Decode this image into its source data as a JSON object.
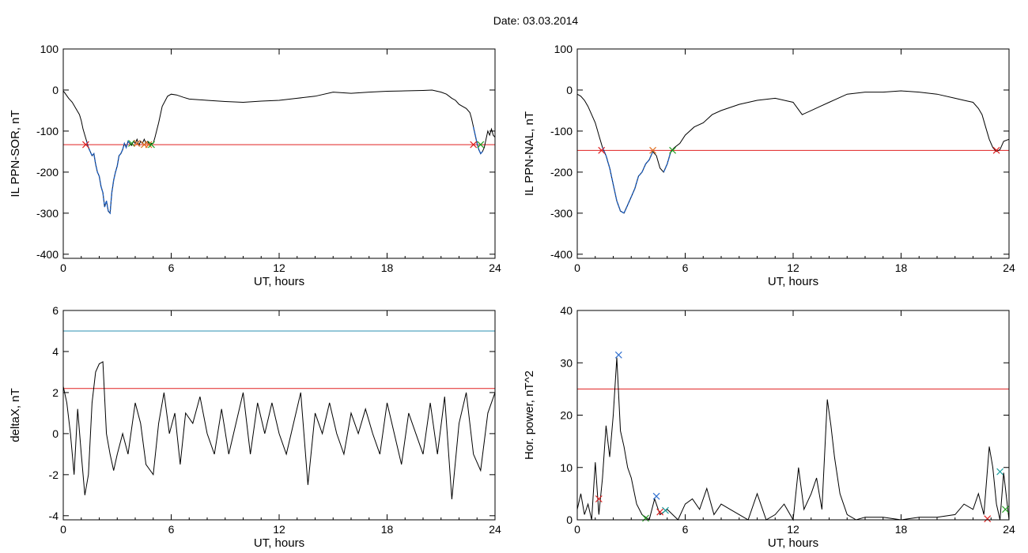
{
  "title": "Date:  03.03.2014",
  "chart_data": [
    {
      "type": "line",
      "ylabel": "IL PPN-SOR, nT",
      "xlabel": "UT, hours",
      "xlim": [
        0,
        24
      ],
      "ylim": [
        -410,
        100
      ],
      "xticks": [
        0,
        6,
        12,
        18,
        24
      ],
      "yticks": [
        100,
        0,
        -100,
        -200,
        -300,
        -400
      ],
      "threshold": -133,
      "threshold_color": "#e02020",
      "line_color": "#000000",
      "highlight_color": "#1f5fbf",
      "highlight_ranges": [
        [
          1.3,
          3.7
        ],
        [
          22.8,
          23.3
        ]
      ],
      "series": [
        {
          "x": [
            0,
            0.1,
            0.2,
            0.3,
            0.5,
            0.7,
            0.9,
            1.0,
            1.1,
            1.2,
            1.3,
            1.4,
            1.5,
            1.6,
            1.7,
            1.8,
            1.9,
            2.0,
            2.1,
            2.2,
            2.3,
            2.4,
            2.5,
            2.6,
            2.7,
            2.8,
            2.9,
            3.0,
            3.1,
            3.2,
            3.3,
            3.4,
            3.5,
            3.6,
            3.7,
            3.8,
            3.9,
            4.0,
            4.1,
            4.2,
            4.3,
            4.4,
            4.5,
            4.6,
            4.7,
            4.8,
            4.9,
            5.0,
            5.1,
            5.3,
            5.5,
            5.8,
            6.0,
            6.3,
            6.7,
            7,
            8,
            9,
            10,
            11,
            12,
            13,
            14,
            15,
            16,
            17,
            18,
            19,
            20,
            20.5,
            21,
            21.3,
            21.6,
            21.8,
            22.0,
            22.2,
            22.4,
            22.6,
            22.7,
            22.8,
            22.9,
            23.0,
            23.1,
            23.2,
            23.3,
            23.4,
            23.5,
            23.6,
            23.7,
            23.8,
            23.9,
            24
          ],
          "y": [
            -2,
            -8,
            -14,
            -20,
            -30,
            -45,
            -60,
            -75,
            -95,
            -110,
            -125,
            -140,
            -150,
            -160,
            -155,
            -180,
            -200,
            -210,
            -235,
            -250,
            -285,
            -270,
            -295,
            -300,
            -250,
            -220,
            -200,
            -185,
            -160,
            -155,
            -145,
            -130,
            -140,
            -125,
            -130,
            -135,
            -125,
            -130,
            -120,
            -135,
            -125,
            -130,
            -120,
            -130,
            -125,
            -135,
            -130,
            -130,
            -115,
            -80,
            -40,
            -15,
            -10,
            -12,
            -18,
            -22,
            -25,
            -28,
            -30,
            -27,
            -25,
            -20,
            -15,
            -5,
            -8,
            -5,
            -3,
            -2,
            -1,
            0,
            -5,
            -10,
            -20,
            -25,
            -35,
            -40,
            -45,
            -55,
            -70,
            -90,
            -110,
            -130,
            -145,
            -155,
            -150,
            -140,
            -120,
            -100,
            -110,
            -95,
            -110,
            -115
          ]
        }
      ],
      "markers": [
        {
          "x": 1.25,
          "y": -133,
          "color": "#e02020"
        },
        {
          "x": 3.8,
          "y": -130,
          "color": "#20a020"
        },
        {
          "x": 4.1,
          "y": -130,
          "color": "#e07020"
        },
        {
          "x": 4.5,
          "y": -133,
          "color": "#e07020"
        },
        {
          "x": 4.75,
          "y": -133,
          "color": "#e07020"
        },
        {
          "x": 4.9,
          "y": -133,
          "color": "#20a020"
        },
        {
          "x": 22.8,
          "y": -133,
          "color": "#e02020"
        },
        {
          "x": 23.2,
          "y": -133,
          "color": "#20a020"
        }
      ]
    },
    {
      "type": "line",
      "ylabel": "IL PPN-NAL, nT",
      "xlabel": "UT, hours",
      "xlim": [
        0,
        24
      ],
      "ylim": [
        -410,
        100
      ],
      "xticks": [
        0,
        6,
        12,
        18,
        24
      ],
      "yticks": [
        100,
        0,
        -100,
        -200,
        -300,
        -400
      ],
      "threshold": -147,
      "threshold_color": "#e02020",
      "line_color": "#000000",
      "highlight_color": "#1f5fbf",
      "highlight_ranges": [
        [
          1.3,
          4.2
        ],
        [
          4.8,
          5.3
        ]
      ],
      "series": [
        {
          "x": [
            0,
            0.2,
            0.4,
            0.6,
            0.8,
            1.0,
            1.2,
            1.4,
            1.6,
            1.8,
            2.0,
            2.2,
            2.4,
            2.6,
            2.8,
            3.0,
            3.2,
            3.4,
            3.6,
            3.8,
            4.0,
            4.2,
            4.4,
            4.6,
            4.8,
            5.0,
            5.2,
            5.4,
            5.7,
            6,
            6.5,
            7,
            7.5,
            8,
            9,
            10,
            11,
            12,
            12.5,
            13,
            13.5,
            14,
            15,
            16,
            17,
            18,
            19,
            20,
            21,
            21.5,
            22,
            22.3,
            22.5,
            22.7,
            22.9,
            23.1,
            23.3,
            23.5,
            23.7,
            24
          ],
          "y": [
            -10,
            -15,
            -25,
            -40,
            -60,
            -80,
            -110,
            -140,
            -160,
            -190,
            -230,
            -270,
            -295,
            -300,
            -280,
            -260,
            -240,
            -210,
            -200,
            -180,
            -170,
            -150,
            -160,
            -190,
            -200,
            -180,
            -150,
            -140,
            -130,
            -110,
            -90,
            -80,
            -60,
            -50,
            -35,
            -25,
            -20,
            -30,
            -60,
            -50,
            -40,
            -30,
            -10,
            -5,
            -5,
            -2,
            -5,
            -10,
            -20,
            -25,
            -30,
            -45,
            -60,
            -90,
            -120,
            -140,
            -150,
            -145,
            -125,
            -120
          ]
        }
      ],
      "markers": [
        {
          "x": 1.35,
          "y": -147,
          "color": "#e02020"
        },
        {
          "x": 4.2,
          "y": -147,
          "color": "#e07020"
        },
        {
          "x": 5.3,
          "y": -147,
          "color": "#20a020"
        },
        {
          "x": 23.3,
          "y": -147,
          "color": "#e02020"
        }
      ]
    },
    {
      "type": "line",
      "ylabel": "deltaX, nT",
      "xlabel": "UT, hours",
      "xlim": [
        0,
        24
      ],
      "ylim": [
        -4.2,
        6
      ],
      "xticks": [
        0,
        6,
        12,
        18,
        24
      ],
      "yticks": [
        6,
        4,
        2,
        0,
        -2,
        -4
      ],
      "threshold": 2.2,
      "threshold_color": "#e02020",
      "threshold2": 5.0,
      "threshold2_color": "#2a8fb0",
      "line_color": "#000000",
      "series": [
        {
          "x": [
            0,
            0.2,
            0.4,
            0.6,
            0.8,
            1.0,
            1.2,
            1.4,
            1.6,
            1.8,
            2.0,
            2.2,
            2.4,
            2.6,
            2.8,
            3.0,
            3.3,
            3.6,
            4.0,
            4.3,
            4.6,
            5.0,
            5.3,
            5.6,
            5.9,
            6.2,
            6.5,
            6.8,
            7.2,
            7.6,
            8.0,
            8.4,
            8.8,
            9.2,
            9.6,
            10.0,
            10.4,
            10.8,
            11.2,
            11.6,
            12.0,
            12.4,
            12.8,
            13.2,
            13.6,
            14.0,
            14.4,
            14.8,
            15.2,
            15.6,
            16.0,
            16.4,
            16.8,
            17.2,
            17.6,
            18.0,
            18.4,
            18.8,
            19.2,
            19.6,
            20.0,
            20.4,
            20.8,
            21.2,
            21.6,
            22.0,
            22.4,
            22.8,
            23.2,
            23.6,
            24
          ],
          "y": [
            2.3,
            1.5,
            0,
            -2,
            1.2,
            -1,
            -3,
            -2,
            1.5,
            3,
            3.4,
            3.5,
            0,
            -1,
            -1.8,
            -1,
            0,
            -1,
            1.5,
            0.5,
            -1.5,
            -2,
            0.5,
            2,
            0,
            1,
            -1.5,
            1,
            0.5,
            1.8,
            0,
            -1,
            1.2,
            -1,
            0.5,
            2,
            -1,
            1.5,
            0,
            1.5,
            0,
            -1,
            0.5,
            2,
            -2.5,
            1,
            0,
            1.5,
            0,
            -1,
            1,
            0,
            1.2,
            0,
            -1,
            1.5,
            0,
            -1.5,
            1,
            0,
            -1,
            1.5,
            -1,
            1.8,
            -3.2,
            0.5,
            2,
            -1,
            -1.8,
            1,
            2
          ]
        }
      ],
      "markers": []
    },
    {
      "type": "line",
      "ylabel": "Hor. power, nT^2",
      "xlabel": "UT, hours",
      "xlim": [
        0,
        24
      ],
      "ylim": [
        0,
        40
      ],
      "xticks": [
        0,
        6,
        12,
        18,
        24
      ],
      "yticks": [
        40,
        30,
        20,
        10,
        0
      ],
      "threshold": 25,
      "threshold_color": "#e02020",
      "line_color": "#000000",
      "series": [
        {
          "x": [
            0,
            0.2,
            0.4,
            0.6,
            0.8,
            1.0,
            1.2,
            1.4,
            1.6,
            1.8,
            2.0,
            2.2,
            2.4,
            2.6,
            2.8,
            3.0,
            3.3,
            3.6,
            4.0,
            4.3,
            4.6,
            5.0,
            5.3,
            5.6,
            6,
            6.4,
            6.8,
            7.2,
            7.6,
            8,
            8.5,
            9,
            9.5,
            10,
            10.5,
            11,
            11.5,
            12,
            12.3,
            12.6,
            13,
            13.3,
            13.6,
            13.9,
            14.1,
            14.3,
            14.6,
            15,
            15.5,
            16,
            17,
            18,
            19,
            20,
            21,
            21.5,
            22,
            22.3,
            22.6,
            22.9,
            23.1,
            23.3,
            23.5,
            23.7,
            24
          ],
          "y": [
            2,
            5,
            1,
            3,
            0,
            11,
            1,
            8,
            18,
            12,
            20,
            31,
            17,
            14,
            10,
            8,
            3,
            1,
            0,
            4,
            1,
            2,
            1,
            0,
            3,
            4,
            2,
            6,
            1,
            3,
            2,
            1,
            0,
            5,
            0,
            1,
            3,
            0,
            10,
            2,
            5,
            8,
            2,
            23,
            18,
            12,
            5,
            1,
            0,
            0.5,
            0.5,
            0,
            0.5,
            0.5,
            1,
            3,
            2,
            5,
            1,
            14,
            10,
            3,
            0,
            9,
            0
          ]
        }
      ],
      "markers": [
        {
          "x": 1.2,
          "y": 4,
          "color": "#e02020"
        },
        {
          "x": 2.3,
          "y": 31.5,
          "color": "#3070d0"
        },
        {
          "x": 4.4,
          "y": 4.5,
          "color": "#3070d0"
        },
        {
          "x": 4.6,
          "y": 1.5,
          "color": "#e02020"
        },
        {
          "x": 4.9,
          "y": 1.8,
          "color": "#20a0a0"
        },
        {
          "x": 3.8,
          "y": 0.3,
          "color": "#20a020"
        },
        {
          "x": 22.8,
          "y": 0.2,
          "color": "#e02020"
        },
        {
          "x": 23.5,
          "y": 9.2,
          "color": "#20a0a0"
        },
        {
          "x": 23.8,
          "y": 2,
          "color": "#20a020"
        }
      ]
    }
  ]
}
